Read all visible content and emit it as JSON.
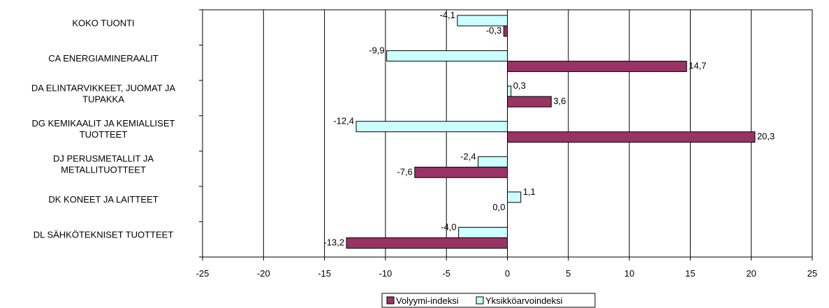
{
  "chart_data": {
    "type": "bar",
    "orientation": "horizontal",
    "categories": [
      [
        "KOKO TUONTI"
      ],
      [
        "CA ENERGIAMINERAALIT"
      ],
      [
        "DA ELINTARVIKKEET, JUOMAT JA",
        "TUPAKKA"
      ],
      [
        "DG KEMIKAALIT JA KEMIALLISET",
        "TUOTTEET"
      ],
      [
        "DJ PERUSMETALLIT JA",
        "METALLITUOTTEET"
      ],
      [
        "DK KONEET JA LAITTEET"
      ],
      [
        "DL SÄHKÖTEKNISET TUOTTEET"
      ]
    ],
    "series": [
      {
        "name": "Yksikköarvoindeksi",
        "color": "#ccffff",
        "values": [
          -4.1,
          -9.9,
          0.3,
          -12.4,
          -2.4,
          1.1,
          -4.0
        ],
        "labels": [
          "-4,1",
          "-9,9",
          "0,3",
          "-12,4",
          "-2,4",
          "1,1",
          "-4,0"
        ]
      },
      {
        "name": "Volyymi-indeksi",
        "color": "#993366",
        "values": [
          -0.3,
          14.7,
          3.6,
          20.3,
          -7.6,
          0.0,
          -13.2
        ],
        "labels": [
          "-0,3",
          "14,7",
          "3,6",
          "20,3",
          "-7,6",
          "0,0",
          "-13,2"
        ]
      }
    ],
    "xlim": [
      -25,
      25
    ],
    "xticks": [
      -25,
      -20,
      -15,
      -10,
      -5,
      0,
      5,
      10,
      15,
      20,
      25
    ],
    "xtick_labels": [
      "-25",
      "-20",
      "-15",
      "-10",
      "-5",
      "0",
      "5",
      "10",
      "15",
      "20",
      "25"
    ],
    "grid": true,
    "legend": {
      "position": "bottom",
      "order": [
        "Volyymi-indeksi",
        "Yksikköarvoindeksi"
      ]
    },
    "title": "",
    "xlabel": "",
    "ylabel": ""
  }
}
